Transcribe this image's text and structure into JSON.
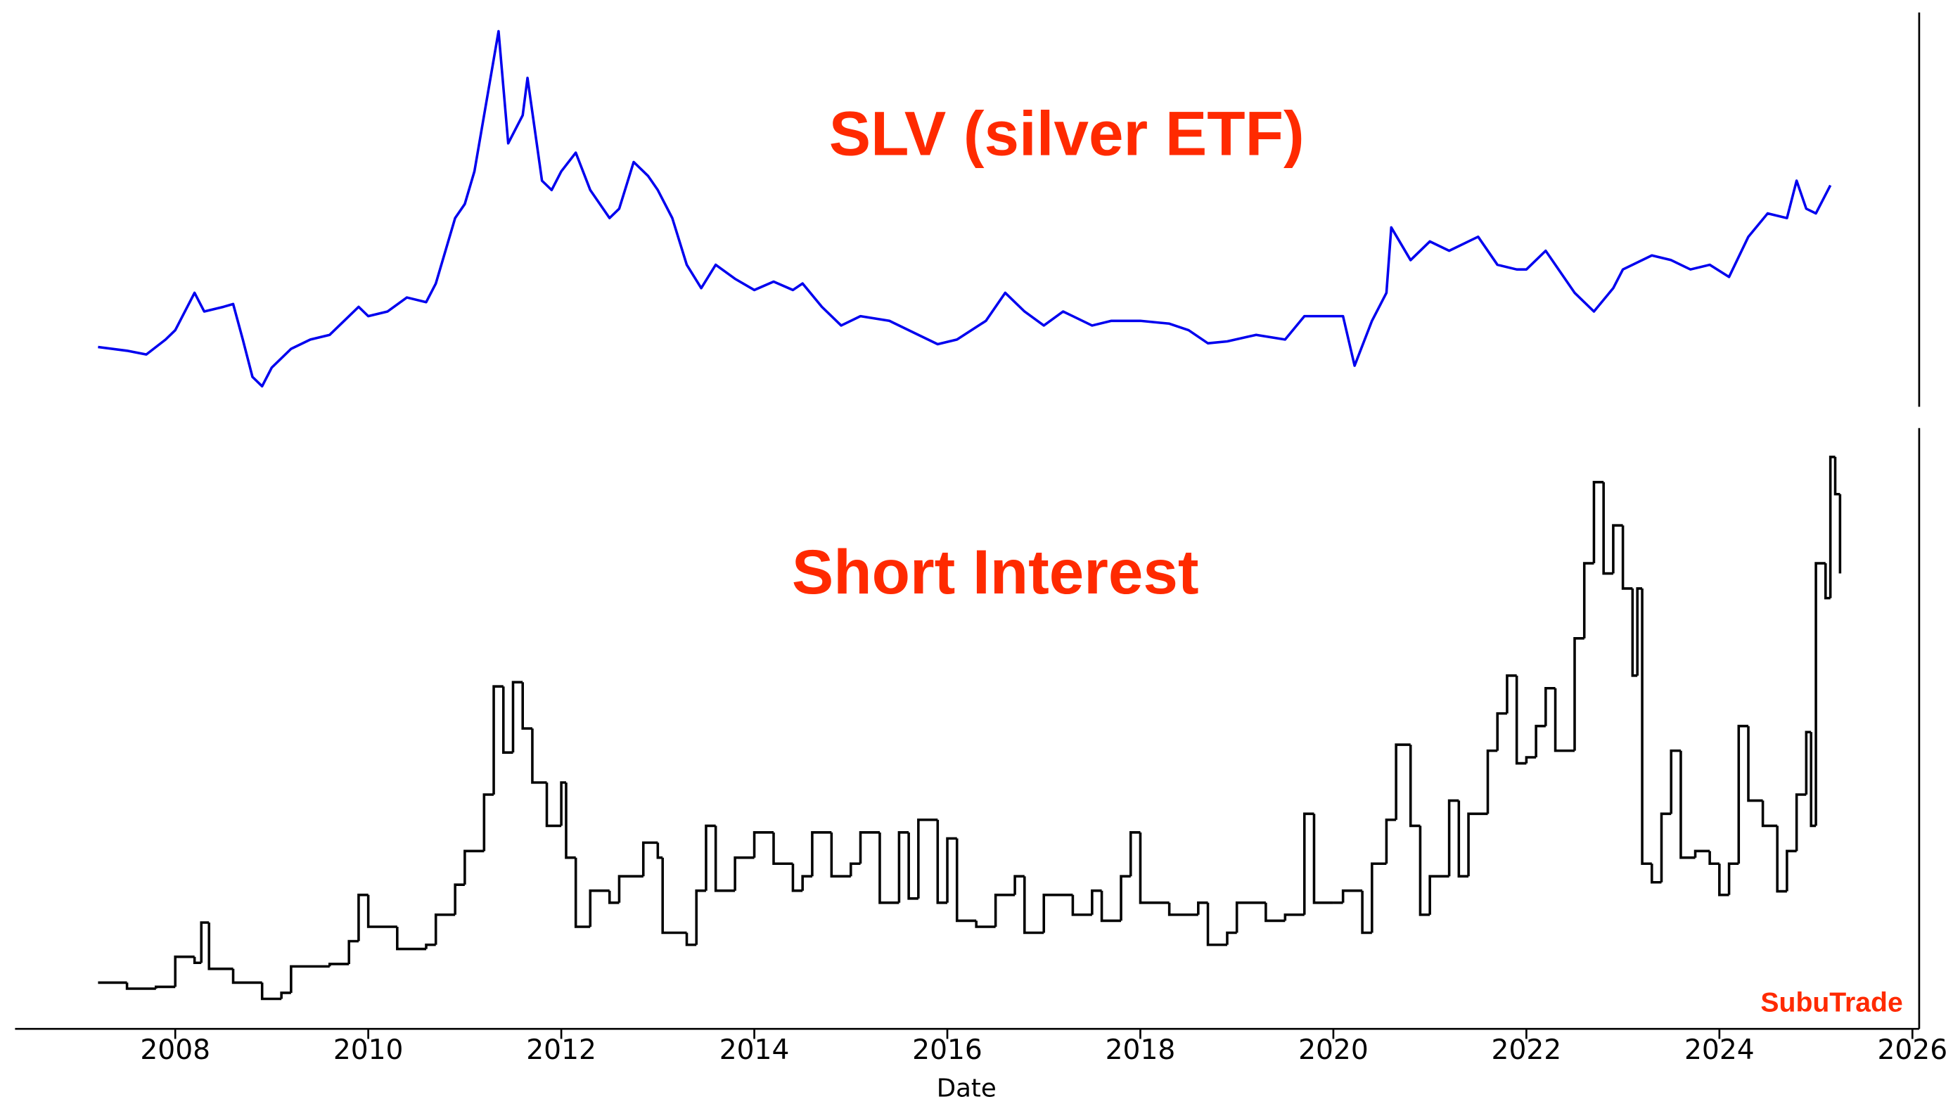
{
  "chart_data": [
    {
      "type": "line",
      "title": "SLV (silver ETF)",
      "xlim": [
        2006.34,
        2026.07
      ],
      "ylim": [
        6.8,
        49
      ],
      "x": [
        2007.2,
        2007.5,
        2007.7,
        2007.9,
        2008.0,
        2008.2,
        2008.3,
        2008.5,
        2008.6,
        2008.7,
        2008.8,
        2008.9,
        2009.0,
        2009.2,
        2009.4,
        2009.6,
        2009.9,
        2010.0,
        2010.2,
        2010.4,
        2010.6,
        2010.7,
        2010.9,
        2011.0,
        2011.1,
        2011.3,
        2011.35,
        2011.45,
        2011.6,
        2011.65,
        2011.8,
        2011.9,
        2012.0,
        2012.15,
        2012.3,
        2012.5,
        2012.6,
        2012.75,
        2012.9,
        2013.0,
        2013.15,
        2013.3,
        2013.45,
        2013.6,
        2013.8,
        2014.0,
        2014.2,
        2014.4,
        2014.5,
        2014.7,
        2014.9,
        2015.1,
        2015.4,
        2015.7,
        2015.9,
        2016.1,
        2016.4,
        2016.6,
        2016.8,
        2017.0,
        2017.2,
        2017.5,
        2017.7,
        2018.0,
        2018.3,
        2018.5,
        2018.7,
        2018.9,
        2019.2,
        2019.5,
        2019.7,
        2019.9,
        2020.1,
        2020.22,
        2020.4,
        2020.55,
        2020.6,
        2020.8,
        2021.0,
        2021.2,
        2021.5,
        2021.7,
        2021.9,
        2022.0,
        2022.2,
        2022.5,
        2022.7,
        2022.9,
        2023.0,
        2023.3,
        2023.5,
        2023.7,
        2023.9,
        2024.1,
        2024.3,
        2024.5,
        2024.7,
        2024.8,
        2024.9,
        2025.0,
        2025.15
      ],
      "series": [
        {
          "color": "#0000ee",
          "values": [
            13.2,
            12.8,
            12.4,
            14.0,
            15.0,
            19.0,
            17,
            17.5,
            17.8,
            14,
            10,
            9.0,
            11,
            13,
            14,
            14.5,
            17.5,
            16.5,
            17,
            18.5,
            18,
            20,
            27,
            28.5,
            32,
            44,
            47,
            35,
            38,
            42,
            31,
            30,
            32,
            34,
            30,
            27,
            28,
            33,
            31.5,
            30,
            27,
            22,
            19.5,
            22,
            20.5,
            19.3,
            20.2,
            19.3,
            20,
            17.5,
            15.5,
            16.5,
            16,
            14.5,
            13.5,
            14,
            16,
            19,
            17,
            15.5,
            17,
            15.5,
            16,
            16,
            15.7,
            15,
            13.6,
            13.8,
            14.5,
            14,
            16.5,
            16.5,
            16.5,
            11.2,
            16,
            19,
            26,
            22.5,
            24.5,
            23.5,
            25,
            22,
            21.5,
            21.5,
            23.5,
            19,
            17,
            19.5,
            21.5,
            23,
            22.5,
            21.5,
            22,
            20.7,
            25,
            27.5,
            27,
            31,
            28,
            27.5,
            30.5
          ]
        }
      ]
    },
    {
      "type": "step",
      "title": "Short Interest",
      "xlabel": "Date",
      "annotation": "SubuTrade",
      "xlim": [
        2006.34,
        2026.07
      ],
      "ylim": [
        0,
        100
      ],
      "xticks": [
        2008,
        2010,
        2012,
        2014,
        2016,
        2018,
        2020,
        2022,
        2024,
        2026
      ],
      "color": "#000000",
      "x": [
        2007.2,
        2007.5,
        2007.8,
        2008.0,
        2008.2,
        2008.27,
        2008.35,
        2008.6,
        2008.9,
        2009.1,
        2009.2,
        2009.6,
        2009.8,
        2009.9,
        2010.0,
        2010.3,
        2010.6,
        2010.7,
        2010.9,
        2011.0,
        2011.2,
        2011.3,
        2011.4,
        2011.5,
        2011.6,
        2011.7,
        2011.85,
        2012.0,
        2012.05,
        2012.15,
        2012.3,
        2012.5,
        2012.6,
        2012.85,
        2013.0,
        2013.05,
        2013.3,
        2013.4,
        2013.5,
        2013.6,
        2013.8,
        2014.0,
        2014.2,
        2014.4,
        2014.5,
        2014.6,
        2014.8,
        2015.0,
        2015.1,
        2015.3,
        2015.5,
        2015.6,
        2015.7,
        2015.9,
        2016.0,
        2016.1,
        2016.3,
        2016.5,
        2016.7,
        2016.8,
        2017.0,
        2017.3,
        2017.5,
        2017.6,
        2017.8,
        2017.9,
        2018.0,
        2018.3,
        2018.6,
        2018.7,
        2018.9,
        2019.0,
        2019.3,
        2019.5,
        2019.7,
        2019.8,
        2020.0,
        2020.1,
        2020.3,
        2020.4,
        2020.55,
        2020.65,
        2020.8,
        2020.9,
        2021.0,
        2021.2,
        2021.3,
        2021.4,
        2021.6,
        2021.7,
        2021.8,
        2021.9,
        2022.0,
        2022.1,
        2022.2,
        2022.3,
        2022.5,
        2022.6,
        2022.7,
        2022.8,
        2022.9,
        2023.0,
        2023.1,
        2023.15,
        2023.2,
        2023.3,
        2023.4,
        2023.5,
        2023.6,
        2023.75,
        2023.9,
        2024.0,
        2024.1,
        2024.2,
        2024.3,
        2024.45,
        2024.6,
        2024.7,
        2024.8,
        2024.9,
        2024.95,
        2025.0,
        2025.1,
        2025.15,
        2025.2,
        2025.25
      ],
      "values": [
        7.7,
        6.7,
        7,
        12,
        11,
        17.7,
        10,
        7.7,
        5,
        6,
        10.4,
        10.8,
        14.6,
        22.3,
        17,
        13.3,
        14,
        19,
        24,
        29.6,
        39,
        57,
        46,
        57.7,
        50,
        41,
        33.8,
        41,
        28.5,
        17,
        23,
        21,
        25.4,
        31,
        28.5,
        16,
        14,
        23,
        33.8,
        23,
        28.5,
        32.7,
        27.5,
        23,
        25.4,
        32.7,
        25.4,
        27.5,
        32.7,
        21,
        32.7,
        21.7,
        34.8,
        21,
        31.7,
        18,
        17,
        22.3,
        25.4,
        16,
        22.3,
        19,
        23,
        18,
        25.4,
        32.7,
        21,
        19,
        21,
        14,
        16,
        21,
        18,
        19,
        35.8,
        21,
        21,
        23,
        16,
        27.5,
        34.8,
        47.3,
        33.8,
        19,
        25.4,
        38,
        25.4,
        35.8,
        46.3,
        52.5,
        58.8,
        44.2,
        45.2,
        50.4,
        56.7,
        46.3,
        65,
        77.5,
        91,
        75.8,
        83.8,
        73.3,
        58.8,
        73.3,
        27.5,
        24.4,
        35.8,
        46.3,
        28.5,
        29.6,
        27.5,
        22.3,
        27.5,
        50.4,
        38,
        33.8,
        22.9,
        29.6,
        39,
        49.4,
        33.8,
        77.5,
        71.7,
        95.2,
        89,
        75.8
      ]
    }
  ]
}
